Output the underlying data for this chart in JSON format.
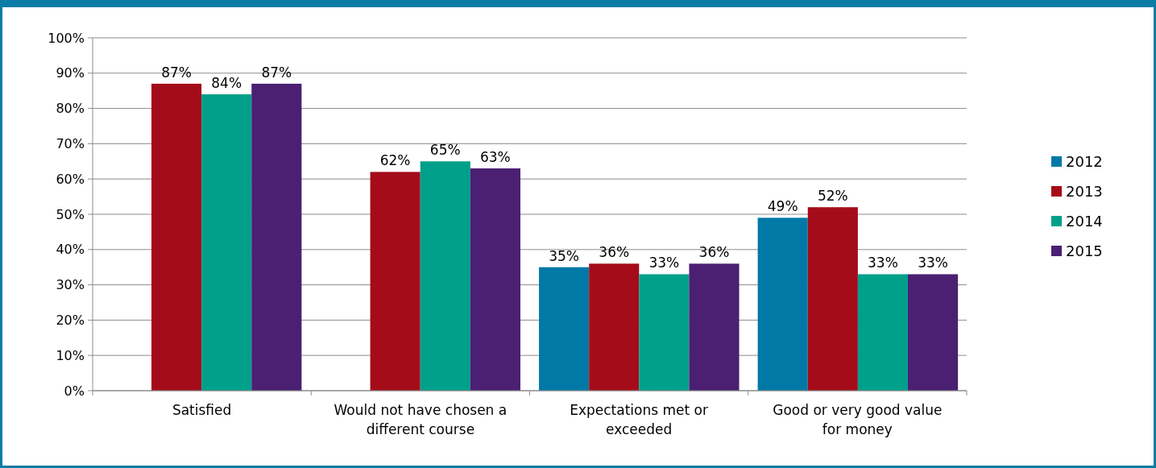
{
  "chart_data": {
    "type": "bar",
    "categories": [
      "Satisfied",
      "Would not have chosen a different course",
      "Expectations met or exceeded",
      "Good or very good value for money"
    ],
    "series": [
      {
        "name": "2012",
        "color": "#0079a6",
        "values": [
          null,
          null,
          35,
          49
        ],
        "value_labels": [
          null,
          null,
          "35%",
          "49%"
        ]
      },
      {
        "name": "2013",
        "color": "#a50c1a",
        "values": [
          87,
          62,
          36,
          52
        ],
        "value_labels": [
          "87%",
          "62%",
          "36%",
          "52%"
        ]
      },
      {
        "name": "2014",
        "color": "#00a08a",
        "values": [
          84,
          65,
          33,
          33
        ],
        "value_labels": [
          "84%",
          "65%",
          "33%",
          "33%"
        ]
      },
      {
        "name": "2015",
        "color": "#4b1f72",
        "values": [
          87,
          63,
          36,
          33
        ],
        "value_labels": [
          "87%",
          "63%",
          "36%",
          "33%"
        ]
      }
    ],
    "ylim": [
      0,
      100
    ],
    "yticks": [
      {
        "value": 0,
        "label": "0%"
      },
      {
        "value": 10,
        "label": "10%"
      },
      {
        "value": 20,
        "label": "20%"
      },
      {
        "value": 30,
        "label": "30%"
      },
      {
        "value": 40,
        "label": "40%"
      },
      {
        "value": 50,
        "label": "50%"
      },
      {
        "value": 60,
        "label": "60%"
      },
      {
        "value": 70,
        "label": "70%"
      },
      {
        "value": 80,
        "label": "80%"
      },
      {
        "value": 90,
        "label": "90%"
      },
      {
        "value": 100,
        "label": "100%"
      }
    ],
    "grid": "y",
    "legend": "right"
  }
}
